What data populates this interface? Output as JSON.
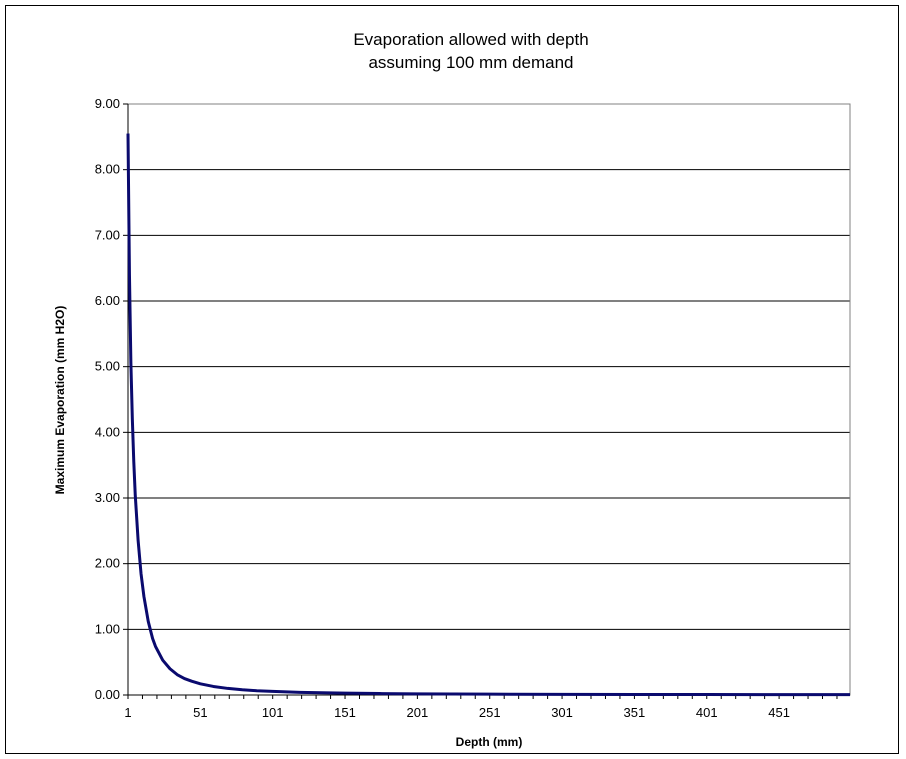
{
  "chart_data": {
    "type": "line",
    "title": "Evaporation allowed with depth",
    "subtitle": "assuming 100 mm demand",
    "xlabel": "Depth (mm)",
    "ylabel": "Maximum Evaporation (mm H2O)",
    "xlim": [
      1,
      500
    ],
    "ylim": [
      0,
      9
    ],
    "grid": true,
    "x_ticks": [
      "1",
      "51",
      "101",
      "151",
      "201",
      "251",
      "301",
      "351",
      "401",
      "451"
    ],
    "y_ticks": [
      "0.00",
      "1.00",
      "2.00",
      "3.00",
      "4.00",
      "5.00",
      "6.00",
      "7.00",
      "8.00",
      "9.00"
    ],
    "series": [
      {
        "color": "#0a0a6e",
        "x": [
          1,
          2,
          3,
          4,
          5,
          6,
          8,
          10,
          12,
          15,
          18,
          20,
          25,
          30,
          35,
          40,
          45,
          51,
          60,
          70,
          80,
          90,
          101,
          120,
          151,
          175,
          201,
          250,
          301,
          351,
          401,
          451,
          500
        ],
        "y": [
          8.55,
          6.4,
          5.05,
          4.2,
          3.55,
          3.05,
          2.35,
          1.85,
          1.5,
          1.12,
          0.86,
          0.74,
          0.53,
          0.4,
          0.31,
          0.25,
          0.21,
          0.17,
          0.13,
          0.1,
          0.08,
          0.065,
          0.055,
          0.04,
          0.028,
          0.022,
          0.018,
          0.013,
          0.01,
          0.008,
          0.007,
          0.006,
          0.005
        ]
      }
    ]
  }
}
